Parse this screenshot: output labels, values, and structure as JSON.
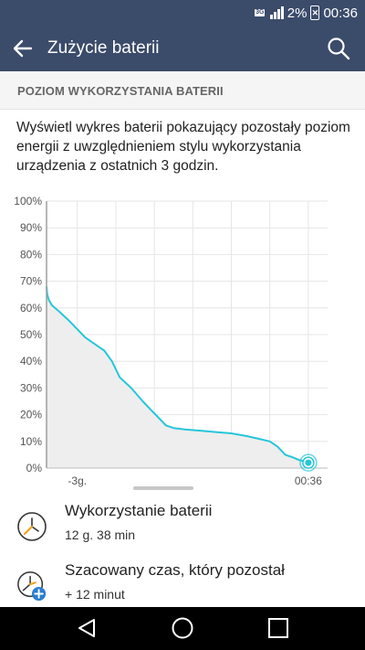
{
  "status_bar": {
    "network_badge": "3G",
    "battery_percent": "2%",
    "time": "00:36"
  },
  "toolbar": {
    "title": "Zużycie baterii",
    "back_icon": "arrow-left-icon",
    "search_icon": "search-icon"
  },
  "section": {
    "title": "POZIOM WYKORZYSTANIA BATERII"
  },
  "description": "Wyświetl wykres baterii pokazujący pozostały poziom energii z uwzględnieniem stylu wykorzystania urządzenia z ostatnich 3 godzin.",
  "chart_data": {
    "type": "area",
    "y_ticks": [
      "100%",
      "90%",
      "80%",
      "70%",
      "60%",
      "50%",
      "40%",
      "30%",
      "20%",
      "10%",
      "0%"
    ],
    "x_tick_labels": [
      "-3g.",
      "00:36"
    ],
    "ylim": [
      0,
      100
    ],
    "xlim": [
      -3.4,
      0.25
    ],
    "x_unit": "hours relative to now",
    "grid": true,
    "line_color": "#26c6da",
    "fill_color": "#eeeeee",
    "series": [
      {
        "values_x": [
          -3.4,
          -3.39,
          -3.37,
          -3.33,
          -3.25,
          -3.1,
          -3.0,
          -2.9,
          -2.8,
          -2.65,
          -2.55,
          -2.45,
          -2.3,
          -2.15,
          -2.05,
          -1.95,
          -1.85,
          -1.75,
          -1.6,
          -1.4,
          -1.2,
          -1.0,
          -0.8,
          -0.65,
          -0.5,
          -0.4,
          -0.3,
          -0.2,
          -0.12,
          -0.05,
          0.0
        ],
        "values_y": [
          68,
          65,
          63,
          61,
          59,
          55,
          52,
          49,
          47,
          44,
          40,
          34,
          30,
          25,
          22,
          19,
          16,
          15,
          14.5,
          14,
          13.5,
          13,
          12,
          11,
          10,
          8,
          5,
          4,
          3,
          2.5,
          2
        ]
      }
    ],
    "current_marker": {
      "x": 0.0,
      "y": 2
    }
  },
  "usage_row": {
    "title": "Wykorzystanie baterii",
    "value": "12 g. 38 min",
    "icon": "clock-icon"
  },
  "remaining_row": {
    "title": "Szacowany czas, który pozostał",
    "value": "+ 12 minut",
    "icon": "clock-plus-icon"
  },
  "nav_bar": {
    "back_icon": "triangle-back-icon",
    "home_icon": "circle-home-icon",
    "recents_icon": "square-recents-icon"
  }
}
